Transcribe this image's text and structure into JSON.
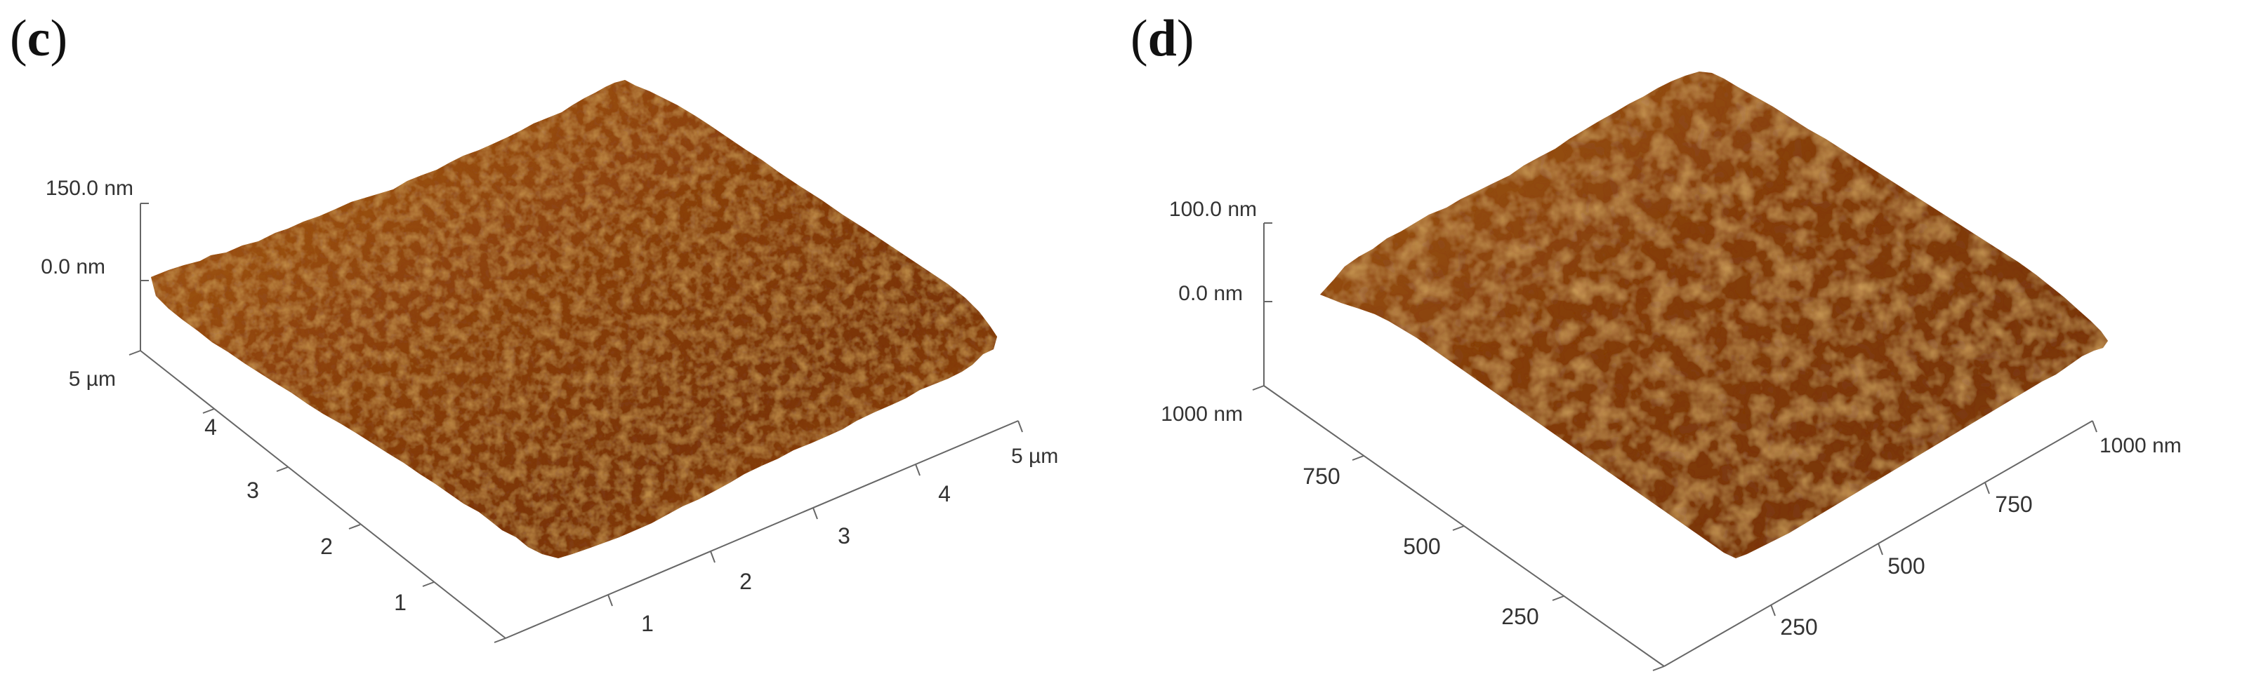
{
  "panels": [
    {
      "label_open": "(",
      "label_letter": "c",
      "label_close": ")",
      "z_axis": {
        "top_label": "150.0 nm",
        "zero_label": "0.0 nm"
      },
      "left_axis": {
        "ticks": [
          "1",
          "2",
          "3",
          "4"
        ],
        "end_label": "5 µm"
      },
      "right_axis": {
        "ticks": [
          "1",
          "2",
          "3",
          "4"
        ],
        "end_label": "5 µm"
      },
      "surface_colors": {
        "dark": "#5a2406",
        "mid": "#9a4f13",
        "light": "#d08a2e",
        "highlight": "#e6b05a"
      }
    },
    {
      "label_open": "(",
      "label_letter": "d",
      "label_close": ")",
      "z_axis": {
        "top_label": "100.0 nm",
        "zero_label": "0.0 nm"
      },
      "left_axis": {
        "ticks": [
          "250",
          "500",
          "750"
        ],
        "end_label": "1000 nm"
      },
      "right_axis": {
        "ticks": [
          "250",
          "500",
          "750"
        ],
        "end_label": "1000 nm"
      },
      "surface_colors": {
        "dark": "#5a2406",
        "mid": "#9a4f13",
        "light": "#d08a2e",
        "highlight": "#e6b05a"
      }
    }
  ]
}
